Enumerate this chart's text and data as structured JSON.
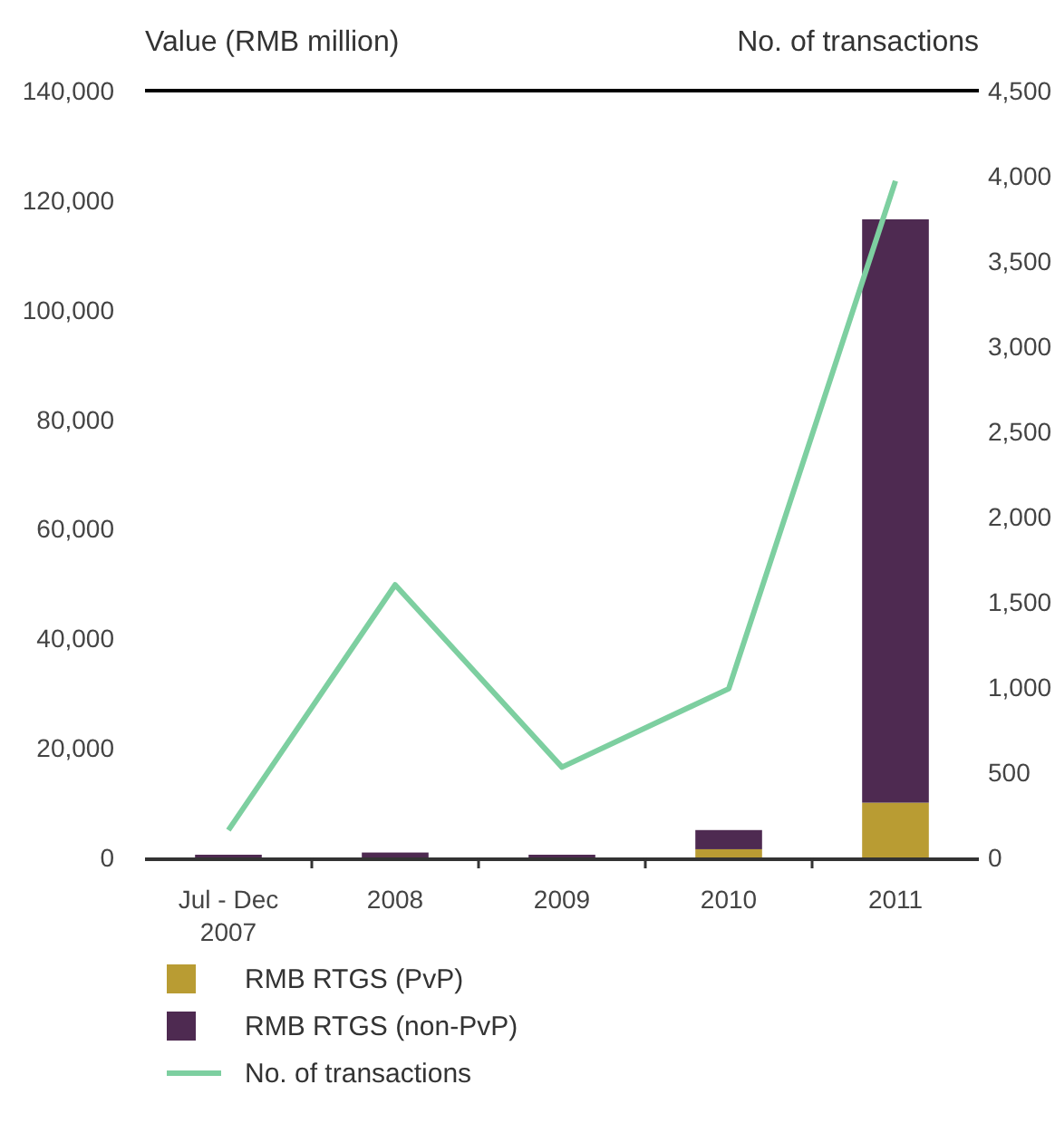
{
  "chart_data": {
    "type": "bar",
    "stacked": true,
    "xlabel": null,
    "ylabel": "Value (RMB million)",
    "y2label": "No. of transactions",
    "categories": [
      "Jul - Dec 2007",
      "2008",
      "2009",
      "2010",
      "2011"
    ],
    "series": [
      {
        "name": "RMB RTGS (PvP)",
        "color": "#b99c33",
        "values": [
          0,
          0,
          0,
          1500,
          10000
        ]
      },
      {
        "name": "RMB RTGS (non-PvP)",
        "color": "#4e2a51",
        "values": [
          500,
          900,
          500,
          3500,
          106500
        ]
      },
      {
        "name": "No. of transactions",
        "type": "line",
        "axis": "y2",
        "color": "#7dcfa0",
        "values": [
          160,
          1600,
          530,
          990,
          3970
        ]
      }
    ],
    "ylim": [
      0,
      140000
    ],
    "yticks": [
      {
        "value": 0,
        "label": "0"
      },
      {
        "value": 20000,
        "label": "20,000"
      },
      {
        "value": 40000,
        "label": "40,000"
      },
      {
        "value": 60000,
        "label": "60,000"
      },
      {
        "value": 80000,
        "label": "80,000"
      },
      {
        "value": 100000,
        "label": "100,000"
      },
      {
        "value": 120000,
        "label": "120,000"
      },
      {
        "value": 140000,
        "label": "140,000"
      }
    ],
    "y2lim": [
      0,
      4500
    ],
    "y2ticks": [
      {
        "value": 0,
        "label": "0"
      },
      {
        "value": 500,
        "label": "500"
      },
      {
        "value": 1000,
        "label": "1,000"
      },
      {
        "value": 1500,
        "label": "1,500"
      },
      {
        "value": 2000,
        "label": "2,000"
      },
      {
        "value": 2500,
        "label": "2,500"
      },
      {
        "value": 3000,
        "label": "3,000"
      },
      {
        "value": 3500,
        "label": "3,500"
      },
      {
        "value": 4000,
        "label": "4,000"
      },
      {
        "value": 4500,
        "label": "4,500"
      }
    ],
    "legend": "bottom",
    "grid": false
  }
}
